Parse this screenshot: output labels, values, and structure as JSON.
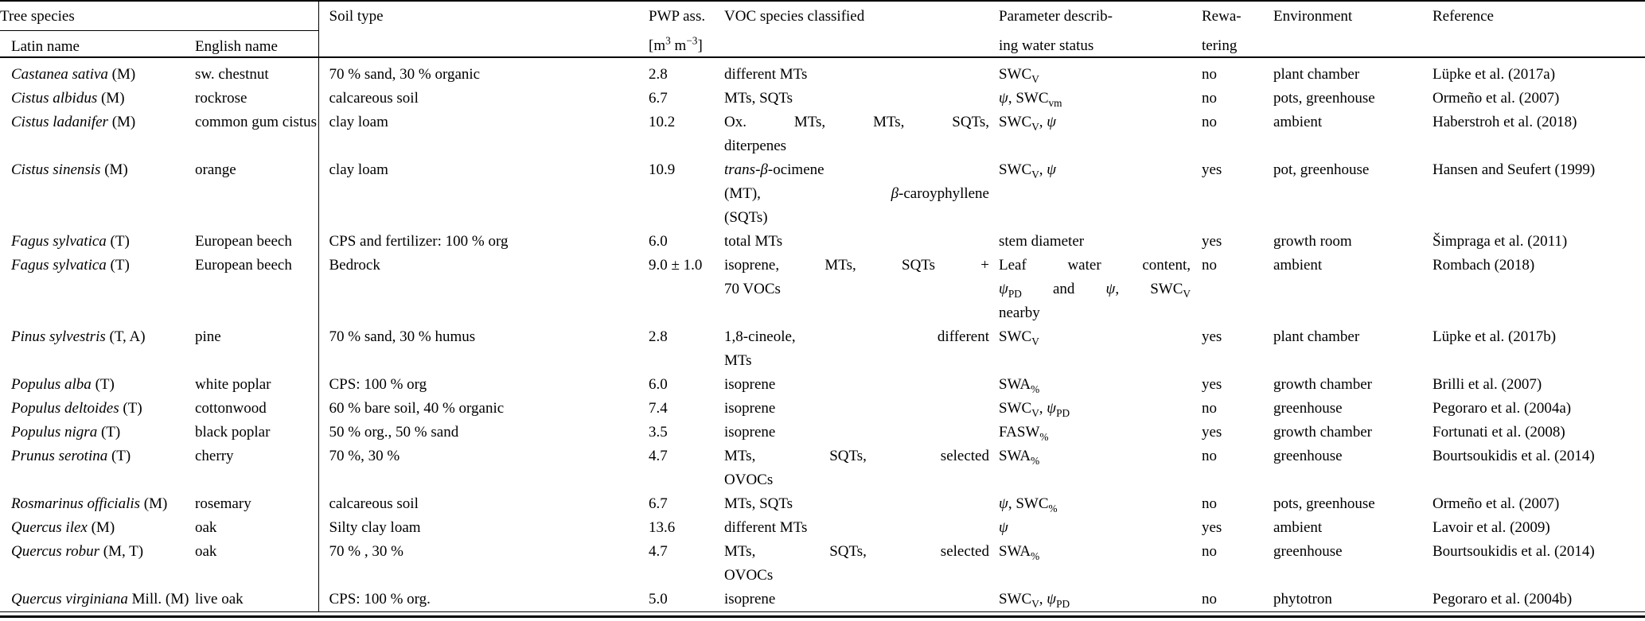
{
  "colors": {
    "text": "#000000",
    "background": "#ffffff",
    "rule": "#000000"
  },
  "table": {
    "header": {
      "tree_species_group": "Tree species",
      "latin_name": "Latin name",
      "english_name": "English name",
      "soil_type": "Soil type",
      "pwp_line1": "PWP ass.",
      "pwp_line2_html": "[m<sup>3</sup> m<sup>−3</sup>]",
      "voc": "VOC species classified",
      "parameter_line1": "Parameter describ-",
      "parameter_line2": "ing water status",
      "rewatering_line1": "Rewa-",
      "rewatering_line2": "tering",
      "environment": "Environment",
      "reference": "Reference"
    },
    "rows": [
      {
        "latin": "<i>Castanea sativa</i> (M)",
        "english": "sw. chestnut",
        "soil": "70 % sand, 30 % organic",
        "pwp": "2.8",
        "voc": "different MTs",
        "param": "SWC<sub>V</sub>",
        "rewatering": "no",
        "environment": "plant chamber",
        "reference": "Lüpke et al. (2017a)"
      },
      {
        "latin": "<i>Cistus albidus</i> (M)",
        "english": "rockrose",
        "soil": "calcareous soil",
        "pwp": "6.7",
        "voc": "MTs, SQTs",
        "param": "<i>ψ</i>, SWC<sub>vm</sub>",
        "rewatering": "no",
        "environment": "pots, greenhouse",
        "reference": "Ormeño et al. (2007)"
      },
      {
        "latin": "<i>Cistus ladanifer</i> (M)",
        "english": "common gum cistus",
        "soil": "clay loam",
        "pwp": "10.2",
        "voc": [
          "Ox. MTs, MTs, SQTs,",
          "diterpenes"
        ],
        "param": "SWC<sub>V</sub>, <i>ψ</i>",
        "rewatering": "no",
        "environment": "ambient",
        "reference": "Haberstroh et al. (2018)"
      },
      {
        "latin": "<i>Cistus sinensis</i> (M)",
        "english": "orange",
        "soil": "clay loam",
        "pwp": "10.9",
        "voc": [
          "<i>trans</i>-<i>β</i>-ocimene",
          "(MT), <i>β</i>-caroyphyllene",
          "(SQTs)"
        ],
        "param": "SWC<sub>V</sub>, <i>ψ</i>",
        "rewatering": "yes",
        "environment": "pot, greenhouse",
        "reference": "Hansen and Seufert (1999)"
      },
      {
        "latin": "<i>Fagus sylvatica</i> (T)",
        "english": "European beech",
        "soil": "CPS and fertilizer: 100 % org",
        "pwp": "6.0",
        "voc": "total MTs",
        "param": "stem diameter",
        "rewatering": "yes",
        "environment": "growth room",
        "reference": "Šimpraga et al. (2011)"
      },
      {
        "latin": "<i>Fagus sylvatica</i> (T)",
        "english": "European beech",
        "soil": "Bedrock",
        "pwp": "9.0 ± 1.0",
        "voc": [
          "isoprene, MTs, SQTs +",
          "70 VOCs"
        ],
        "param": [
          "Leaf water content,",
          "<i>ψ</i><sub>PD</sub> and <i>ψ</i>, SWC<sub>V</sub>",
          "nearby"
        ],
        "rewatering": "no",
        "environment": "ambient",
        "reference": "Rombach (2018)"
      },
      {
        "latin": "<i>Pinus sylvestris</i> (T, A)",
        "english": "pine",
        "soil": "70 % sand, 30 % humus",
        "pwp": "2.8",
        "voc": [
          "1,8-cineole, different",
          "MTs"
        ],
        "param": "SWC<sub>V</sub>",
        "rewatering": "yes",
        "environment": "plant chamber",
        "reference": "Lüpke et al. (2017b)"
      },
      {
        "latin": "<i>Populus alba</i> (T)",
        "english": "white poplar",
        "soil": "CPS: 100 % org",
        "pwp": "6.0",
        "voc": "isoprene",
        "param": "SWA<sub>%</sub>",
        "rewatering": "yes",
        "environment": "growth chamber",
        "reference": "Brilli et al. (2007)"
      },
      {
        "latin": "<i>Populus deltoides</i> (T)",
        "english": "cottonwood",
        "soil": "60 % bare soil, 40 % organic",
        "pwp": "7.4",
        "voc": "isoprene",
        "param": "SWC<sub>V</sub>, <i>ψ</i><sub>PD</sub>",
        "rewatering": "no",
        "environment": "greenhouse",
        "reference": "Pegoraro et al. (2004a)"
      },
      {
        "latin": "<i>Populus nigra</i> (T)",
        "english": "black poplar",
        "soil": "50 % org., 50 % sand",
        "pwp": "3.5",
        "voc": "isoprene",
        "param": "FASW<sub>%</sub>",
        "rewatering": "yes",
        "environment": "growth chamber",
        "reference": "Fortunati et al. (2008)"
      },
      {
        "latin": "<i>Prunus serotina</i> (T)",
        "english": "cherry",
        "soil": "70 %, 30 %",
        "pwp": "4.7",
        "voc": [
          "MTs, SQTs, selected",
          "OVOCs"
        ],
        "param": "SWA<sub>%</sub>",
        "rewatering": "no",
        "environment": "greenhouse",
        "reference": "Bourtsoukidis et al. (2014)"
      },
      {
        "latin": "<i>Rosmarinus officialis</i> (M)",
        "english": "rosemary",
        "soil": "calcareous soil",
        "pwp": "6.7",
        "voc": "MTs, SQTs",
        "param": "<i>ψ</i>, SWC<sub>%</sub>",
        "rewatering": "no",
        "environment": "pots, greenhouse",
        "reference": "Ormeño et al. (2007)"
      },
      {
        "latin": "<i>Quercus ilex</i> (M)",
        "english": "oak",
        "soil": "Silty clay loam",
        "pwp": "13.6",
        "voc": "different MTs",
        "param": "<i>ψ</i>",
        "rewatering": "yes",
        "environment": "ambient",
        "reference": "Lavoir et al. (2009)"
      },
      {
        "latin": "<i>Quercus robur</i> (M, T)",
        "english": "oak",
        "soil": "70 % , 30 %",
        "pwp": "4.7",
        "voc": [
          "MTs, SQTs, selected",
          "OVOCs"
        ],
        "param": "SWA<sub>%</sub>",
        "rewatering": "no",
        "environment": "greenhouse",
        "reference": "Bourtsoukidis et al. (2014)"
      },
      {
        "latin": "<i>Quercus virginiana</i> Mill. (M)",
        "english": "live oak",
        "soil": "CPS: 100 % org.",
        "pwp": "5.0",
        "voc": "isoprene",
        "param": "SWC<sub>V</sub>, <i>ψ</i><sub>PD</sub>",
        "rewatering": "no",
        "environment": "phytotron",
        "reference": "Pegoraro et al. (2004b)"
      }
    ]
  }
}
